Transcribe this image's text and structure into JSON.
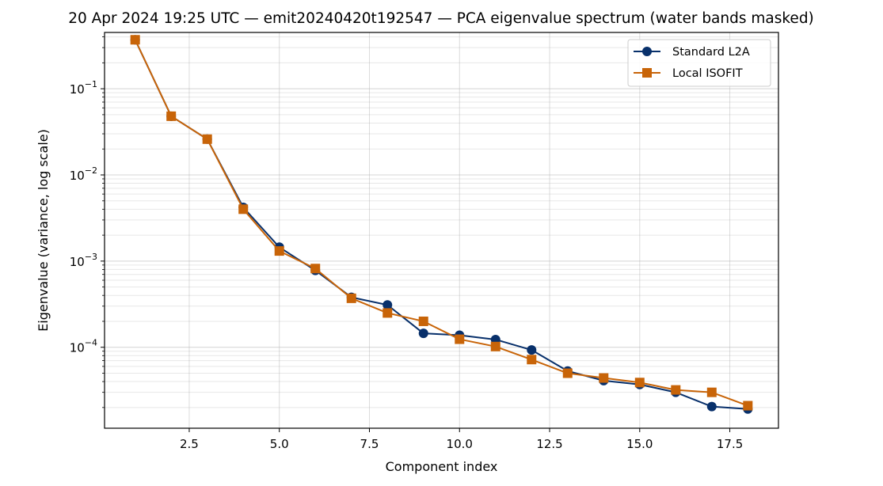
{
  "chart_data": {
    "type": "line",
    "title": "20 Apr 2024 19:25 UTC — emit20240420t192547 — PCA eigenvalue spectrum (water bands masked)",
    "xlabel": "Component index",
    "ylabel": "Eigenvalue (variance, log scale)",
    "xscale": "linear",
    "yscale": "log",
    "xlim": [
      0.15,
      18.85
    ],
    "ylim": [
      1.15e-05,
      0.45
    ],
    "xticks": [
      2.5,
      5.0,
      7.5,
      10.0,
      12.5,
      15.0,
      17.5
    ],
    "xtick_labels": [
      "2.5",
      "5.0",
      "7.5",
      "10.0",
      "12.5",
      "15.0",
      "17.5"
    ],
    "yticks": [
      0.0001,
      0.001,
      0.01,
      0.1
    ],
    "ytick_labels": [
      {
        "base": "10",
        "exp": "−4"
      },
      {
        "base": "10",
        "exp": "−3"
      },
      {
        "base": "10",
        "exp": "−2"
      },
      {
        "base": "10",
        "exp": "−1"
      }
    ],
    "grid": true,
    "legend_position": "top-right",
    "x": [
      1,
      2,
      3,
      4,
      5,
      6,
      7,
      8,
      9,
      10,
      11,
      12,
      13,
      14,
      15,
      16,
      17,
      18
    ],
    "series": [
      {
        "name": "Standard L2A",
        "color": "#08306b",
        "marker": "circle",
        "values": [
          0.37,
          0.048,
          0.026,
          0.0042,
          0.00145,
          0.00078,
          0.00038,
          0.00031,
          0.000145,
          0.000138,
          0.000123,
          9.3e-05,
          5.3e-05,
          4.1e-05,
          3.7e-05,
          3e-05,
          2.05e-05,
          1.92e-05
        ]
      },
      {
        "name": "Local ISOFIT",
        "color": "#c86408",
        "marker": "square",
        "values": [
          0.37,
          0.048,
          0.026,
          0.004,
          0.00131,
          0.00082,
          0.00037,
          0.00025,
          0.0002,
          0.000124,
          0.000102,
          7.2e-05,
          5e-05,
          4.4e-05,
          3.9e-05,
          3.2e-05,
          3e-05,
          2.1e-05
        ]
      }
    ]
  }
}
